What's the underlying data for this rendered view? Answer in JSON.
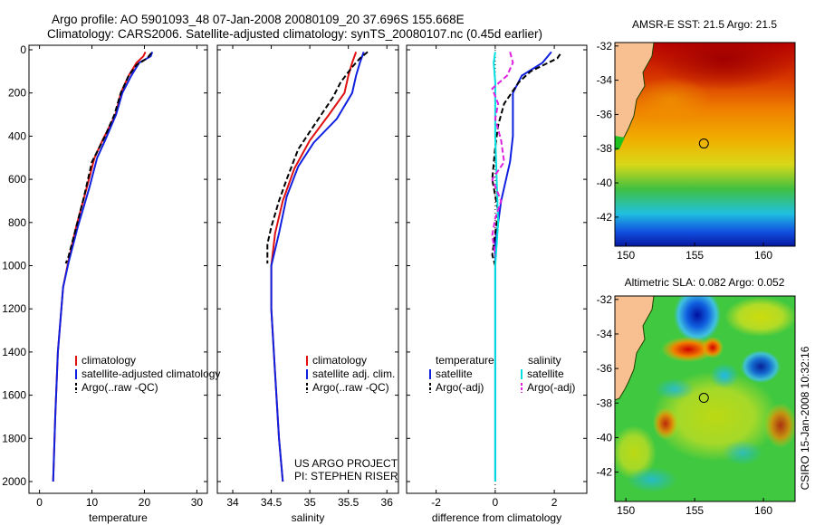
{
  "header": {
    "line1": "Argo profile: AO 5901093_48 07-Jan-2008 20080109_20 37.696S 155.668E",
    "line2": "Climatology: CARS2006. Satellite-adjusted climatology: synTS_20080107.nc (0.45d earlier)"
  },
  "chart_data": [
    {
      "type": "line",
      "id": "temperature",
      "xlabel": "temperature",
      "xlim": [
        -2,
        32
      ],
      "ylim": [
        0,
        2050
      ],
      "xticks": [
        0,
        10,
        20,
        30
      ],
      "yticks": [
        0,
        200,
        400,
        600,
        800,
        1000,
        1200,
        1400,
        1600,
        1800,
        2000
      ],
      "legend": [
        "climatology",
        "satellite-adjusted climatology",
        "Argo(..raw -QC)"
      ],
      "series": [
        {
          "name": "climatology",
          "color": "#e01010",
          "dash": "",
          "points": [
            [
              20.2,
              10
            ],
            [
              19.8,
              30
            ],
            [
              18.5,
              60
            ],
            [
              17,
              120
            ],
            [
              15.5,
              200
            ],
            [
              14.5,
              300
            ],
            [
              12,
              420
            ],
            [
              10.5,
              500
            ],
            [
              9,
              640
            ],
            [
              7,
              820
            ],
            [
              5.5,
              980
            ],
            [
              4.5,
              1100
            ],
            [
              3.5,
              1400
            ],
            [
              3,
              1700
            ],
            [
              2.6,
              2000
            ]
          ]
        },
        {
          "name": "satellite-adjusted climatology",
          "color": "#1020e0",
          "dash": "",
          "points": [
            [
              21.5,
              10
            ],
            [
              21.2,
              30
            ],
            [
              19,
              60
            ],
            [
              17.5,
              120
            ],
            [
              15.8,
              200
            ],
            [
              14.6,
              300
            ],
            [
              12.5,
              420
            ],
            [
              11,
              500
            ],
            [
              9.5,
              640
            ],
            [
              7.3,
              820
            ],
            [
              5.6,
              980
            ],
            [
              4.5,
              1100
            ],
            [
              3.5,
              1400
            ],
            [
              3,
              1700
            ],
            [
              2.6,
              2000
            ]
          ]
        },
        {
          "name": "Argo(..raw -QC)",
          "color": "#000000",
          "dash": "6,3",
          "points": [
            [
              21.3,
              15
            ],
            [
              20.5,
              40
            ],
            [
              18.5,
              70
            ],
            [
              17,
              120
            ],
            [
              15.5,
              200
            ],
            [
              14.3,
              300
            ],
            [
              12.5,
              400
            ],
            [
              10,
              520
            ],
            [
              8.5,
              680
            ],
            [
              6.8,
              840
            ],
            [
              5.5,
              960
            ],
            [
              5,
              990
            ]
          ]
        }
      ]
    },
    {
      "type": "line",
      "id": "salinity",
      "xlabel": "salinity",
      "xlim": [
        33.8,
        36.15
      ],
      "ylim": [
        0,
        2050
      ],
      "xticks": [
        34,
        34.5,
        35,
        35.5,
        36
      ],
      "legend": [
        "climatology",
        "satellite adj. clim.",
        "Argo(..raw -QC)"
      ],
      "series": [
        {
          "name": "climatology",
          "color": "#e01010",
          "dash": "",
          "points": [
            [
              35.6,
              10
            ],
            [
              35.55,
              60
            ],
            [
              35.5,
              120
            ],
            [
              35.45,
              200
            ],
            [
              35.25,
              300
            ],
            [
              35.0,
              420
            ],
            [
              34.8,
              550
            ],
            [
              34.65,
              700
            ],
            [
              34.55,
              850
            ],
            [
              34.5,
              1000
            ],
            [
              34.5,
              1200
            ],
            [
              34.55,
              1500
            ],
            [
              34.6,
              1800
            ],
            [
              34.65,
              2000
            ]
          ]
        },
        {
          "name": "satellite adj. clim.",
          "color": "#1020e0",
          "dash": "",
          "points": [
            [
              35.7,
              10
            ],
            [
              35.65,
              60
            ],
            [
              35.6,
              120
            ],
            [
              35.55,
              200
            ],
            [
              35.35,
              320
            ],
            [
              35.05,
              430
            ],
            [
              34.85,
              540
            ],
            [
              34.7,
              680
            ],
            [
              34.6,
              850
            ],
            [
              34.5,
              1000
            ],
            [
              34.5,
              1200
            ],
            [
              34.55,
              1500
            ],
            [
              34.6,
              1800
            ],
            [
              34.65,
              2000
            ]
          ]
        },
        {
          "name": "Argo(..raw -QC)",
          "color": "#000000",
          "dash": "6,3",
          "points": [
            [
              35.75,
              10
            ],
            [
              35.65,
              40
            ],
            [
              35.55,
              80
            ],
            [
              35.4,
              150
            ],
            [
              35.3,
              220
            ],
            [
              35.15,
              300
            ],
            [
              35.0,
              380
            ],
            [
              34.85,
              460
            ],
            [
              34.7,
              600
            ],
            [
              34.6,
              700
            ],
            [
              34.5,
              820
            ],
            [
              34.45,
              900
            ],
            [
              34.45,
              990
            ]
          ]
        }
      ]
    },
    {
      "type": "line",
      "id": "difference",
      "xlabel": "difference from climatology",
      "xlim": [
        -3,
        3.1
      ],
      "ylim": [
        0,
        2050
      ],
      "xticks": [
        -2,
        0,
        2
      ],
      "legend_titles": [
        "temperature",
        "salinity"
      ],
      "legend": [
        "satellite",
        "Argo(-adj)",
        "satellite",
        "Argo(-adj)"
      ],
      "series": [
        {
          "name": "temperature satellite",
          "color": "#1020e0",
          "dash": "",
          "points": [
            [
              1.9,
              10
            ],
            [
              1.6,
              60
            ],
            [
              0.9,
              120
            ],
            [
              0.6,
              200
            ],
            [
              0.6,
              300
            ],
            [
              0.6,
              400
            ],
            [
              0.5,
              520
            ],
            [
              0.2,
              700
            ],
            [
              0.0,
              900
            ],
            [
              0.0,
              1000
            ],
            [
              0.0,
              2000
            ]
          ]
        },
        {
          "name": "temperature Argo(-adj)",
          "color": "#000000",
          "dash": "6,3",
          "points": [
            [
              2.2,
              20
            ],
            [
              2.1,
              40
            ],
            [
              1.2,
              100
            ],
            [
              0.8,
              150
            ],
            [
              0.3,
              250
            ],
            [
              0.1,
              350
            ],
            [
              0.0,
              450
            ],
            [
              -0.1,
              600
            ],
            [
              0.1,
              750
            ],
            [
              0.0,
              850
            ],
            [
              -0.1,
              950
            ],
            [
              0.0,
              1000
            ]
          ]
        },
        {
          "name": "salinity satellite",
          "color": "#00e0e0",
          "dash": "",
          "points": [
            [
              0.0,
              10
            ],
            [
              -0.05,
              60
            ],
            [
              0.0,
              150
            ],
            [
              0.0,
              400
            ],
            [
              0.05,
              600
            ],
            [
              0.1,
              800
            ],
            [
              0.0,
              1000
            ],
            [
              0.0,
              2000
            ]
          ]
        },
        {
          "name": "salinity Argo(-adj)",
          "color": "#e020e0",
          "dash": "6,3",
          "points": [
            [
              0.5,
              10
            ],
            [
              0.6,
              60
            ],
            [
              0.4,
              120
            ],
            [
              -0.1,
              180
            ],
            [
              0.1,
              250
            ],
            [
              0.0,
              320
            ],
            [
              0.2,
              420
            ],
            [
              0.3,
              520
            ],
            [
              -0.1,
              600
            ],
            [
              0.2,
              700
            ],
            [
              0.0,
              780
            ],
            [
              -0.1,
              860
            ],
            [
              0.0,
              950
            ]
          ]
        }
      ]
    },
    {
      "type": "heatmap",
      "id": "sst",
      "title": "AMSR-E SST: 21.5 Argo: 21.5",
      "xlim": [
        149.2,
        162.3
      ],
      "ylim": [
        -43.7,
        -31.8
      ],
      "xticks": [
        150,
        155,
        160
      ],
      "yticks": [
        -32,
        -34,
        -36,
        -38,
        -40,
        -42
      ],
      "float_position": {
        "lon": 155.67,
        "lat": -37.7
      }
    },
    {
      "type": "heatmap",
      "id": "sla",
      "title": "Altimetric SLA: 0.082 Argo: 0.052",
      "xlim": [
        149.2,
        162.3
      ],
      "ylim": [
        -43.7,
        -31.8
      ],
      "xticks": [
        150,
        155,
        160
      ],
      "yticks": [
        -32,
        -34,
        -36,
        -38,
        -40,
        -42
      ],
      "float_position": {
        "lon": 155.67,
        "lat": -37.7
      }
    }
  ],
  "annotations": {
    "project": "US ARGO PROJECT",
    "pi": "PI: STEPHEN RISER",
    "credit": "CSIRO 15-Jan-2008 10:32:16"
  }
}
